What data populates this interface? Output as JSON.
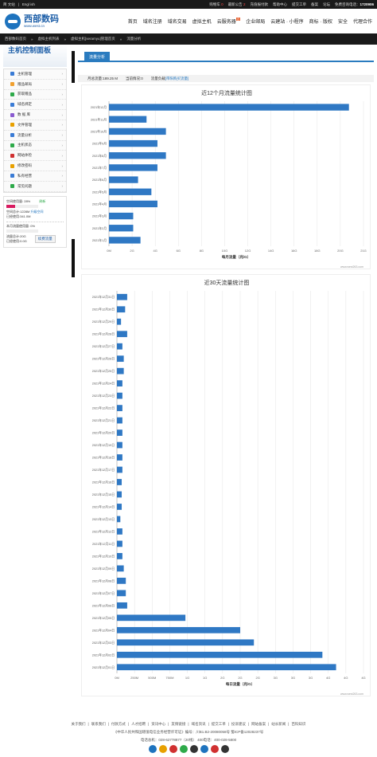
{
  "topbar": {
    "lang": "简 文站",
    "lang2": "Engl ish",
    "cart": "购物车",
    "cart_count": "0",
    "notice": "最新公告",
    "notice_count": "2",
    "items": [
      "充值报付款",
      "帮助中心",
      "提交工单",
      "备案",
      "论坛",
      "免费咨询电话："
    ],
    "phone": "1720906"
  },
  "header": {
    "logo_cn": "西部数码",
    "logo_en": "www.west.cn",
    "nav": [
      "首页",
      "域名注册",
      "域名交易",
      "虚拟主机",
      "云服务器",
      "企业邮局",
      "云建站 · 小程序",
      "商标 · 版权",
      "安全",
      "代理合作"
    ],
    "nav_badge": "云"
  },
  "breadcrumb": [
    "西部数码首页",
    "虚拟主机列表",
    "虚拟主机[seramyu]管理首页",
    "流量分析"
  ],
  "sidebar": {
    "banner": "主机控制面板",
    "menu": [
      {
        "label": "主机管理",
        "color": "#3a7bd5"
      },
      {
        "label": "赠品邮局",
        "color": "#f0a030"
      },
      {
        "label": "获取赠品",
        "color": "#2eaa4a"
      },
      {
        "label": "域名绑定",
        "color": "#3a7bd5"
      },
      {
        "label": "数 据 库",
        "color": "#8a5bd0"
      },
      {
        "label": "文件管理",
        "color": "#e8a000"
      },
      {
        "label": "流量分析",
        "color": "#3a7bd5"
      },
      {
        "label": "主机状态",
        "color": "#2eaa4a"
      },
      {
        "label": "网站体检",
        "color": "#d03030"
      },
      {
        "label": "修改密码",
        "color": "#e8a000"
      },
      {
        "label": "私有经营",
        "color": "#3a7bd5"
      },
      {
        "label": "常见问题",
        "color": "#2eaa4a"
      }
    ],
    "space_used_label": "空间使用量: 28%",
    "space_pct_text": "28%",
    "space_pct": 0.28,
    "space_reset": "刷新",
    "space_line2": "空间总计:1228M",
    "space_upgrade": "升级空间",
    "space_line3": "已经使用:341.0M",
    "traffic_label": "本月流量使用量: 0%",
    "traffic_pct_text": "0%",
    "traffic_pct": 0.0,
    "traffic_total": "流量总计:20G",
    "traffic_used": "已经使用:0.0G",
    "buy_label": "续费流量"
  },
  "main": {
    "tab": "流量分析",
    "info": [
      "月总流量:189.25 M",
      "当前情况:0",
      "流量负载"
    ],
    "info_link": "[带阳购买流量]"
  },
  "chart_data": [
    {
      "type": "bar",
      "orientation": "horizontal",
      "title": "近12个月流量统计图",
      "xlabel": "每月流量（兆/G）",
      "categories": [
        "2021年12月",
        "2021年11月",
        "2021年10月",
        "2021年9月",
        "2021年8月",
        "2021年7月",
        "2021年6月",
        "2021年5月",
        "2021年4月",
        "2021年3月",
        "2021年2月",
        "2021年1月"
      ],
      "values": [
        19.8,
        3.1,
        4.7,
        4.0,
        4.7,
        4.0,
        2.4,
        3.5,
        4.0,
        2.0,
        2.0,
        2.6
      ],
      "xticks": [
        "0M",
        "2G",
        "4G",
        "6G",
        "8G",
        "10G",
        "12G",
        "14G",
        "16G",
        "18G",
        "20G",
        "21G"
      ],
      "xlim": [
        0,
        21
      ],
      "watermark": "www.west263.com"
    },
    {
      "type": "bar",
      "orientation": "horizontal",
      "title": "近30天流量统计图",
      "xlabel": "每日流量（兆/G）",
      "categories": [
        "2021年12月31日",
        "2021年12月30日",
        "2021年12月29日",
        "2021年12月28日",
        "2021年12月27日",
        "2021年12月26日",
        "2021年12月25日",
        "2021年12月24日",
        "2021年12月23日",
        "2021年12月22日",
        "2021年12月21日",
        "2021年12月20日",
        "2021年12月19日",
        "2021年12月18日",
        "2021年12月17日",
        "2021年12月16日",
        "2021年12月15日",
        "2021年12月14日",
        "2021年12月13日",
        "2021年12月12日",
        "2021年12月11日",
        "2021年12月10日",
        "2021年12月09日",
        "2021年12月08日",
        "2021年12月07日",
        "2021年12月06日",
        "2021年12月05日",
        "2021年12月04日",
        "2021年12月03日",
        "2021年12月02日",
        "2021年12月01日"
      ],
      "values": [
        0.15,
        0.12,
        0.06,
        0.15,
        0.08,
        0.1,
        0.1,
        0.08,
        0.08,
        0.08,
        0.08,
        0.08,
        0.08,
        0.08,
        0.08,
        0.07,
        0.07,
        0.07,
        0.05,
        0.08,
        0.08,
        0.08,
        0.1,
        0.13,
        0.13,
        0.15,
        1.0,
        1.8,
        2.0,
        3.0,
        3.2
      ],
      "xticks": [
        "0M",
        "250M",
        "500M",
        "750M",
        "1G",
        "1G",
        "2G",
        "2G",
        "2G",
        "3G",
        "3G",
        "3G",
        "4G",
        "4G",
        "4G"
      ],
      "xlim": [
        0,
        3.6
      ],
      "watermark": "www.west263.com"
    }
  ],
  "footer": {
    "links": [
      "关于我们",
      "联系我们",
      "付款方式",
      "人才招聘",
      "资讯中心",
      "友情链接",
      "域名资讯",
      "提交工单",
      "投诉建议",
      "网站备案",
      "站长新闻",
      "百科知识"
    ],
    "line1": "《中华人民共和国增值电信业务经营许可证》编号：川B1.B2-20080058号  蜀ICP备12028237号",
    "line2": "电话总机：028-62778877（20线）      400电话：400-028-5800"
  }
}
